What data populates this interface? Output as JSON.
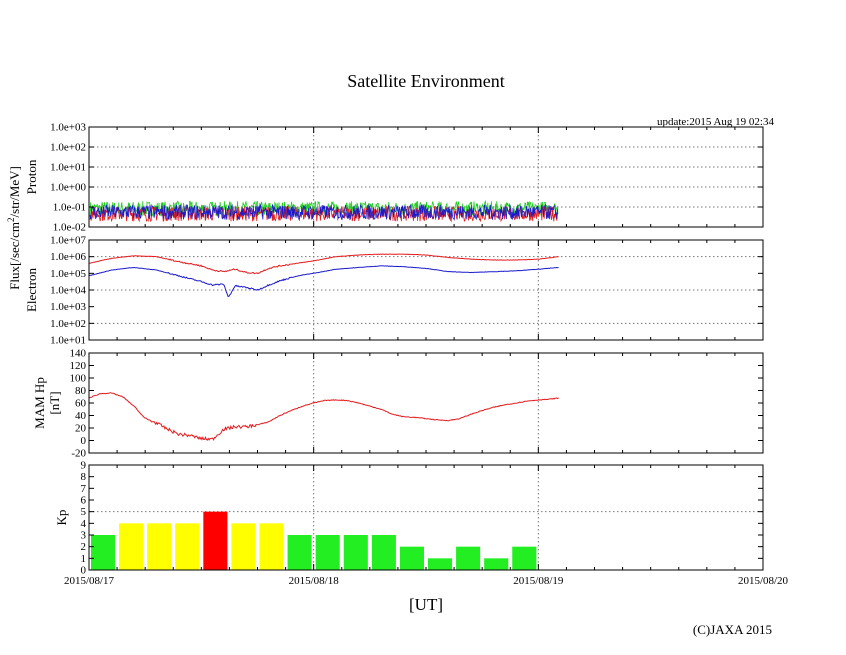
{
  "title": "Satellite Environment",
  "update_text": "update:2015 Aug 19 02:34",
  "copyright": "(C)JAXA 2015",
  "xlabel": "[UT]",
  "colors": {
    "red": "#e41a1c",
    "blue": "#1a1acc",
    "green": "#22cc22",
    "yellow": "#ffff00",
    "kp_green": "#22ee22",
    "kp_red": "#ff0000"
  },
  "chart_data": [
    {
      "type": "line",
      "name": "proton",
      "ylabel": "Proton",
      "shared_ylabel": "Flux[/sec/cm2/str/MeV]",
      "yscale": "log",
      "ylim_exp": [
        -2,
        3
      ],
      "ytick_labels": [
        "1.0e-02",
        "1.0e-01",
        "1.0e+00",
        "1.0e+01",
        "1.0e+02",
        "1.0e+03"
      ],
      "xlim_days": [
        0,
        3
      ],
      "data_end_day": 2.09,
      "series": [
        {
          "name": "green",
          "color": "#22cc22",
          "level": 0.09,
          "noise": "high"
        },
        {
          "name": "red",
          "color": "#e41a1c",
          "level": 0.05,
          "noise": "high"
        },
        {
          "name": "blue",
          "color": "#1a1acc",
          "level": 0.06,
          "noise": "high"
        }
      ]
    },
    {
      "type": "line",
      "name": "electron",
      "ylabel": "Electron",
      "yscale": "log",
      "ylim_exp": [
        1,
        7
      ],
      "ytick_labels": [
        "1.0e+01",
        "1.0e+02",
        "1.0e+03",
        "1.0e+04",
        "1.0e+05",
        "1.0e+06",
        "1.0e+07"
      ],
      "xlim_days": [
        0,
        3
      ],
      "series": [
        {
          "name": "red",
          "color": "#e41a1c",
          "x": [
            0.0,
            0.1,
            0.2,
            0.3,
            0.4,
            0.5,
            0.55,
            0.6,
            0.65,
            0.7,
            0.75,
            0.8,
            0.85,
            0.9,
            0.95,
            1.0,
            1.1,
            1.2,
            1.3,
            1.4,
            1.5,
            1.6,
            1.7,
            1.8,
            1.9,
            2.0,
            2.09
          ],
          "log10y": [
            5.6,
            5.9,
            6.05,
            6.0,
            5.7,
            5.45,
            5.2,
            5.1,
            5.25,
            5.05,
            5.0,
            5.3,
            5.45,
            5.55,
            5.65,
            5.75,
            6.0,
            6.1,
            6.15,
            6.15,
            6.1,
            5.95,
            5.85,
            5.8,
            5.8,
            5.85,
            6.0
          ]
        },
        {
          "name": "blue",
          "color": "#1a1acc",
          "x": [
            0.0,
            0.1,
            0.2,
            0.3,
            0.4,
            0.5,
            0.55,
            0.6,
            0.62,
            0.65,
            0.7,
            0.75,
            0.8,
            0.85,
            0.9,
            0.95,
            1.0,
            1.1,
            1.2,
            1.3,
            1.4,
            1.5,
            1.6,
            1.7,
            1.8,
            1.9,
            2.0,
            2.09
          ],
          "log10y": [
            4.85,
            5.2,
            5.35,
            5.2,
            4.85,
            4.5,
            4.3,
            4.35,
            3.55,
            4.25,
            4.15,
            4.0,
            4.3,
            4.55,
            4.75,
            4.9,
            5.0,
            5.25,
            5.35,
            5.45,
            5.4,
            5.3,
            5.1,
            5.05,
            5.1,
            5.15,
            5.25,
            5.35
          ]
        }
      ]
    },
    {
      "type": "line",
      "name": "mam_hp",
      "ylabel": "MAM Hp",
      "ylabel2": "[nT]",
      "ylim": [
        -20,
        140
      ],
      "yticks": [
        -20,
        0,
        20,
        40,
        60,
        80,
        100,
        120,
        140
      ],
      "ytick_labels": [
        "-20",
        "0",
        "20",
        "40",
        "60",
        "80",
        "100",
        "120",
        "140"
      ],
      "xlim_days": [
        0,
        3
      ],
      "series": [
        {
          "name": "red",
          "color": "#e41a1c",
          "x": [
            0.0,
            0.05,
            0.1,
            0.15,
            0.2,
            0.25,
            0.3,
            0.35,
            0.4,
            0.45,
            0.5,
            0.55,
            0.6,
            0.65,
            0.7,
            0.75,
            0.8,
            0.85,
            0.9,
            0.95,
            1.0,
            1.05,
            1.1,
            1.15,
            1.2,
            1.25,
            1.3,
            1.35,
            1.4,
            1.45,
            1.5,
            1.55,
            1.6,
            1.65,
            1.7,
            1.75,
            1.8,
            1.85,
            1.9,
            1.95,
            2.0,
            2.05,
            2.09
          ],
          "y": [
            68,
            75,
            76,
            70,
            55,
            35,
            28,
            18,
            10,
            8,
            3,
            2,
            18,
            22,
            22,
            25,
            30,
            40,
            48,
            55,
            60,
            64,
            65,
            64,
            60,
            55,
            50,
            42,
            38,
            37,
            35,
            33,
            32,
            35,
            42,
            48,
            53,
            57,
            60,
            63,
            65,
            66,
            68
          ]
        }
      ]
    },
    {
      "type": "bar",
      "name": "kp",
      "ylabel": "Kp",
      "ylim": [
        0,
        9
      ],
      "yticks": [
        0,
        1,
        2,
        3,
        4,
        5,
        6,
        7,
        8,
        9
      ],
      "ytick_labels": [
        "0",
        "1",
        "2",
        "3",
        "4",
        "5",
        "6",
        "7",
        "8",
        "9"
      ],
      "xlim_days": [
        0,
        3
      ],
      "bar_interval_hours": 3,
      "values": [
        3,
        4,
        4,
        4,
        5,
        4,
        4,
        3,
        3,
        3,
        3,
        2,
        1,
        2,
        1,
        2
      ],
      "bar_colors": [
        "green",
        "yellow",
        "yellow",
        "yellow",
        "red",
        "yellow",
        "yellow",
        "green",
        "green",
        "green",
        "green",
        "green",
        "green",
        "green",
        "green",
        "green"
      ],
      "xtick_labels": [
        "2015/08/17",
        "2015/08/18",
        "2015/08/19",
        "2015/08/20"
      ]
    }
  ]
}
